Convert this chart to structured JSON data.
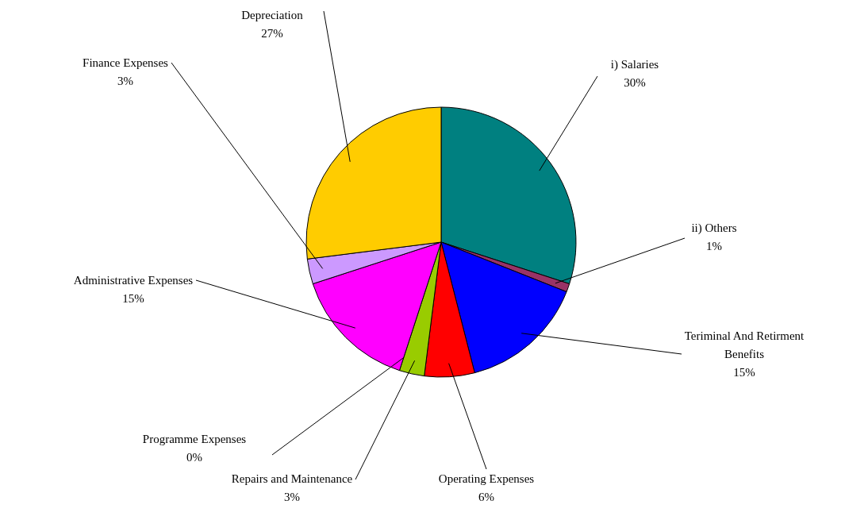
{
  "chart_data": {
    "type": "pie",
    "categories": [
      "i)  Salaries",
      "ii)  Others",
      "Teriminal And Retirment Benefits",
      "Operating Expenses",
      "Repairs and Maintenance",
      "Programme Expenses",
      "Administrative Expenses",
      "Finance Expenses",
      "Depreciation"
    ],
    "values": [
      30,
      1,
      15,
      6,
      3,
      0,
      15,
      3,
      27
    ],
    "value_labels": [
      "30%",
      "1%",
      "15%",
      "6%",
      "3%",
      "0%",
      "15%",
      "3%",
      "27%"
    ],
    "colors": [
      "#008080",
      "#993366",
      "#0000ff",
      "#ff0000",
      "#99cc00",
      "#660066",
      "#ff00ff",
      "#cc99ff",
      "#ffcc00"
    ],
    "legend": false
  }
}
